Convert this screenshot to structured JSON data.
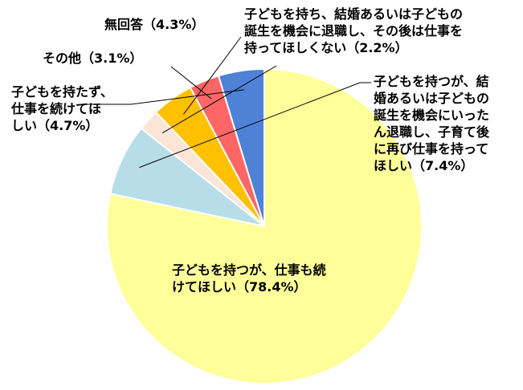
{
  "chart_data": {
    "type": "pie",
    "title": "",
    "start_angle_deg": 0,
    "direction": "clockwise",
    "slices": [
      {
        "label": "子どもを持つが、仕事も続\nけてほしい（78.4%）",
        "value": 78.4,
        "color": "#FFFF99"
      },
      {
        "label": "子どもを持つが、結\n婚あるいは子どもの\n誕生を機会にいった\nん退職し、子育て後\nに再び仕事を持って\nほしい（7.4%）",
        "value": 7.4,
        "color": "#B7DEE8"
      },
      {
        "label": "子どもを持ち、結婚あるいは子どもの\n誕生を機会に退職し、その後は仕事を\n持ってほしくない（2.2%）",
        "value": 2.2,
        "color": "#FCE4D6"
      },
      {
        "label": "無回答（4.3%）",
        "value": 4.3,
        "color": "#FFC000"
      },
      {
        "label": "その他（3.1%）",
        "value": 3.1,
        "color": "#FF6666"
      },
      {
        "label": "子どもを持たず、\n仕事を続けてほ\nしい（4.7%）",
        "value": 4.7,
        "color": "#4F81D7"
      }
    ]
  }
}
